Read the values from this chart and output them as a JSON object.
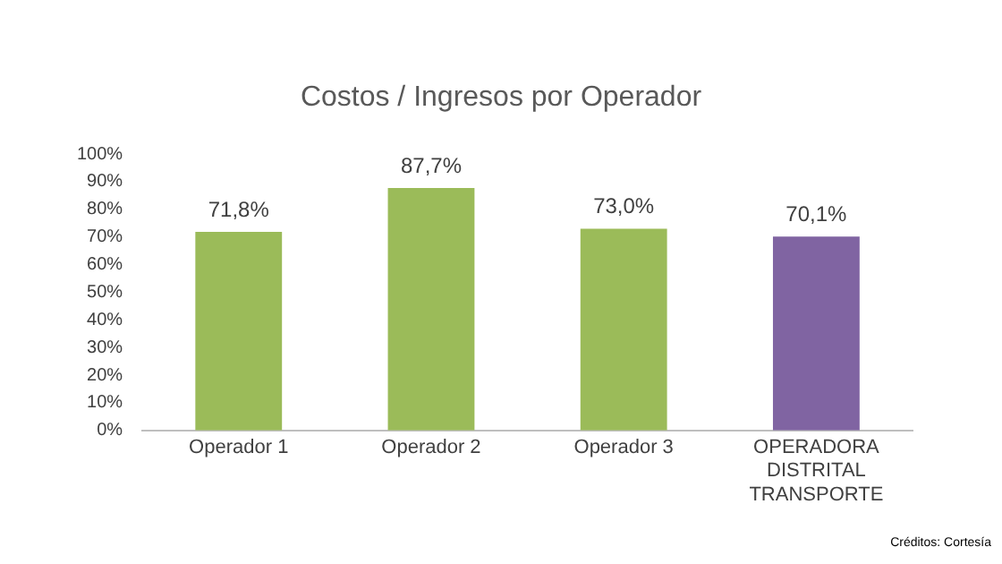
{
  "chart_data": {
    "type": "bar",
    "title": "Costos / Ingresos por Operador",
    "categories": [
      "Operador 1",
      "Operador 2",
      "Operador 3",
      "OPERADORA DISTRITAL TRANSPORTE"
    ],
    "values": [
      71.8,
      87.7,
      73.0,
      70.1
    ],
    "colors": [
      "#9bbb59",
      "#9bbb59",
      "#9bbb59",
      "#8064a2"
    ],
    "value_labels": [
      "71,8%",
      "87,7%",
      "73,0%",
      "70,1%"
    ],
    "ylim": [
      0,
      100
    ],
    "yticks": [
      {
        "value": 0,
        "label": "0%"
      },
      {
        "value": 10,
        "label": "10%"
      },
      {
        "value": 20,
        "label": "20%"
      },
      {
        "value": 30,
        "label": "30%"
      },
      {
        "value": 40,
        "label": "40%"
      },
      {
        "value": 50,
        "label": "50%"
      },
      {
        "value": 60,
        "label": "60%"
      },
      {
        "value": 70,
        "label": "70%"
      },
      {
        "value": 80,
        "label": "80%"
      },
      {
        "value": 90,
        "label": "90%"
      },
      {
        "value": 100,
        "label": "100%"
      }
    ],
    "grid": false,
    "legend": false,
    "annotations": [
      "Créditos: Cortesía"
    ]
  }
}
